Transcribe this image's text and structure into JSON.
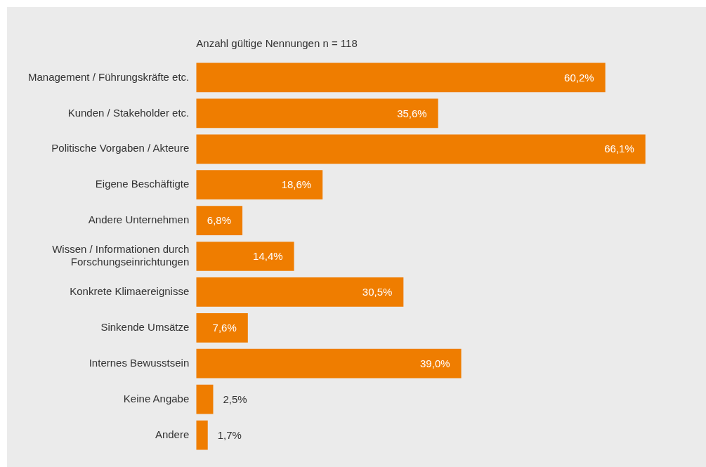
{
  "chart_data": {
    "type": "bar",
    "orientation": "horizontal",
    "title": "Anzahl gültige Nennungen n = 118",
    "categories": [
      "Management / Führungskräfte etc.",
      "Kunden / Stakeholder etc.",
      "Politische Vorgaben / Akteure",
      "Eigene Beschäftigte",
      "Andere Unternehmen",
      "Wissen / Informationen durch Forschungseinrichtungen",
      "Konkrete Klimaereignisse",
      "Sinkende Umsätze",
      "Internes Bewusstsein",
      "Keine Angabe",
      "Andere"
    ],
    "values": [
      60.2,
      35.6,
      66.1,
      18.6,
      6.8,
      14.4,
      30.5,
      7.6,
      39.0,
      2.5,
      1.7
    ],
    "value_labels": [
      "60,2%",
      "35,6%",
      "66,1%",
      "18,6%",
      "6,8%",
      "14,4%",
      "30,5%",
      "7,6%",
      "39,0%",
      "2,5%",
      "1,7%"
    ],
    "color": "#ef7d00",
    "xlim": [
      0,
      74.5
    ],
    "grid": false,
    "legend": false
  }
}
